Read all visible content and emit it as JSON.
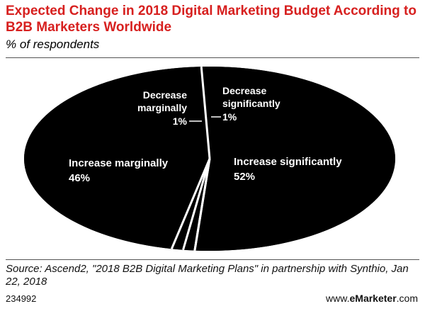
{
  "header": {
    "title": "Expected Change in 2018 Digital Marketing Budget According to B2B Marketers Worldwide",
    "subtitle": "% of respondents"
  },
  "chart_data": {
    "type": "pie",
    "title": "Expected Change in 2018 Digital Marketing Budget According to B2B Marketers Worldwide",
    "subtitle": "% of respondents",
    "categories": [
      "Increase significantly",
      "Decrease significantly",
      "Decrease marginally",
      "Increase marginally"
    ],
    "values": [
      52,
      1,
      1,
      46
    ],
    "value_labels": [
      "52%",
      "1%",
      "1%",
      "46%"
    ],
    "colors": {
      "slice": "#000000",
      "separator": "#ffffff",
      "label": "#ffffff",
      "title": "#d7201f"
    }
  },
  "footer": {
    "source": "Source: Ascend2, \"2018 B2B Digital Marketing Plans\" in partnership with Synthio, Jan 22, 2018",
    "chart_id": "234992",
    "brand_prefix": "www.",
    "brand_name": "eMarketer",
    "brand_suffix": ".com"
  }
}
